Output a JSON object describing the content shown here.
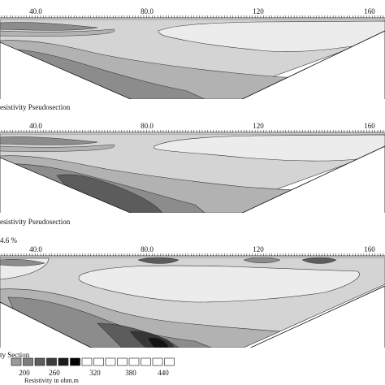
{
  "panels": [
    {
      "id": "measured",
      "axis_ticks": [
        "40.0",
        "80.0",
        "120",
        "160"
      ],
      "caption": "esistivity Pseudosection"
    },
    {
      "id": "calculated",
      "axis_ticks": [
        "40.0",
        "80.0",
        "120",
        "160"
      ],
      "caption": "esistivity Pseudosection"
    },
    {
      "id": "inverse",
      "error_label": "4.6 %",
      "axis_ticks": [
        "40.0",
        "80.0",
        "120",
        "160"
      ],
      "caption": "ty Section"
    }
  ],
  "legend": {
    "values": [
      "200",
      "260",
      "320",
      "380",
      "440"
    ],
    "unit_label": "Resistivity in ohm.m",
    "swatch_colors": [
      "#9a9a9a",
      "#7e7e7e",
      "#5e5e5e",
      "#3c3c3c",
      "#1c1c1c",
      "#050505",
      "#ffffff",
      "#ffffff",
      "#ffffff",
      "#ffffff",
      "#ffffff",
      "#ffffff",
      "#ffffff",
      "#ffffff"
    ]
  },
  "fill_colors": {
    "lightest": "#ececec",
    "light": "#d4d4d4",
    "medium": "#b2b2b2",
    "mid_dark": "#8c8c8c",
    "dark": "#5c5c5c",
    "darker": "#363636",
    "darkest": "#141414"
  }
}
